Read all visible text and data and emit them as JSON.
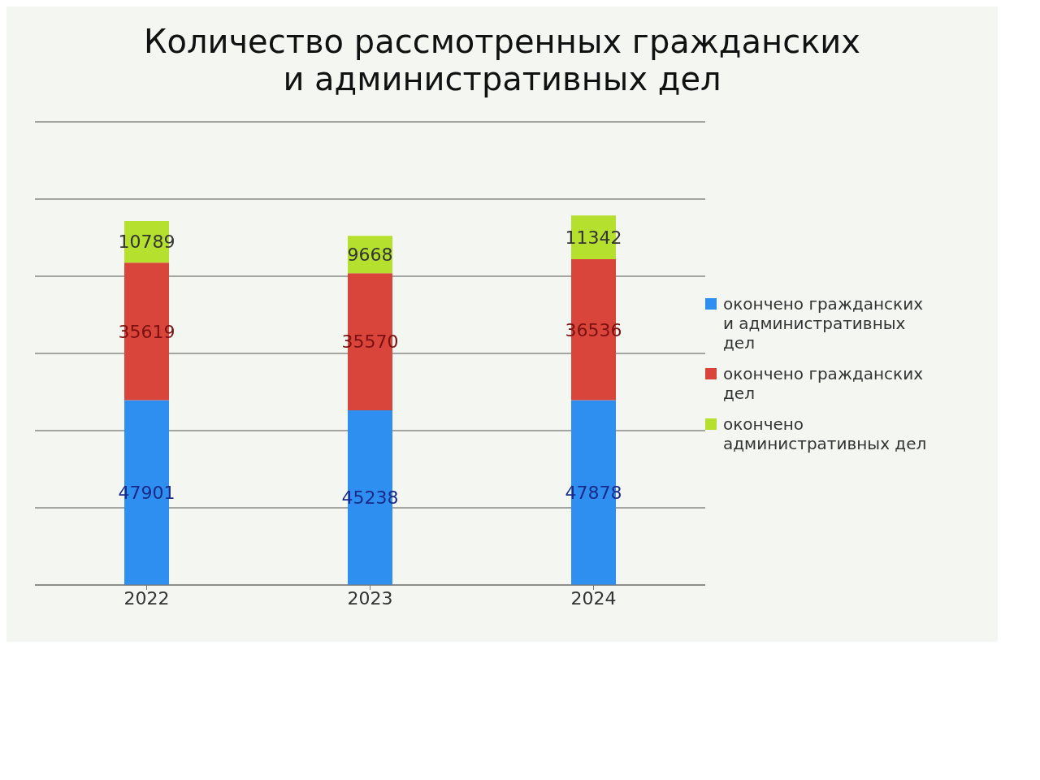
{
  "chart_data": {
    "type": "bar",
    "title": "Количество рассмотренных гражданских и административных дел",
    "categories": [
      "2022",
      "2023",
      "2024"
    ],
    "stacked": true,
    "data_labels": true,
    "grid": "y",
    "legend": "right",
    "tick_labels": "x",
    "series": [
      {
        "name": "окончено гражданских и административных дел",
        "color": "#2e8ff0",
        "values": [
          47901,
          45238,
          47878
        ]
      },
      {
        "name": "окончено гражданских дел",
        "color": "#d9453a",
        "values": [
          35619,
          35570,
          36536
        ]
      },
      {
        "name": "окончено административных дел",
        "color": "#b5e02e",
        "values": [
          10789,
          9668,
          11342
        ]
      }
    ]
  }
}
